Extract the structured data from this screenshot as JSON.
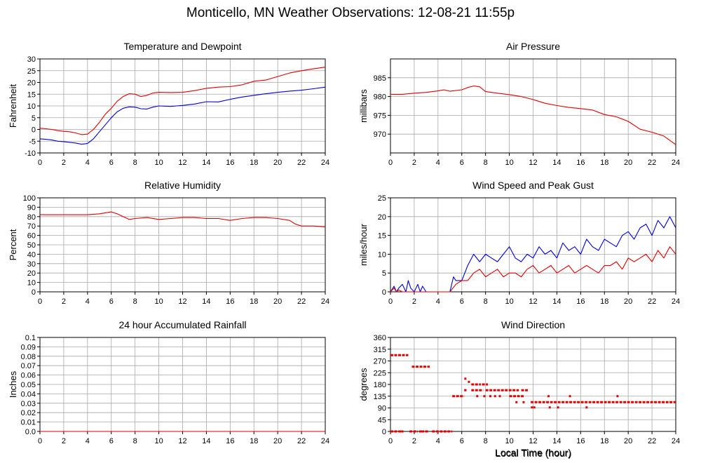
{
  "page": {
    "title": "Monticello, MN Weather Observations: 12-08-21 11:55p"
  },
  "colors": {
    "red": "#e00000",
    "blue": "#0000d8",
    "grid": "#a8a8a8",
    "axis": "#000000"
  },
  "x_axis": {
    "label": "Local Time (hour)",
    "ticks": [
      0,
      2,
      4,
      6,
      8,
      10,
      12,
      14,
      16,
      18,
      20,
      22,
      24
    ],
    "xlim": [
      0,
      24
    ]
  },
  "chart_data": [
    {
      "id": "temp",
      "type": "line",
      "title": "Temperature and Dewpoint",
      "xlabel": "",
      "ylabel": "Fahrenheit",
      "ylim": [
        -10,
        30
      ],
      "xlim": [
        0,
        24
      ],
      "yticks": [
        -10,
        -5,
        0,
        5,
        10,
        15,
        20,
        25,
        30
      ],
      "ytick_labels": [
        "-10",
        "-5",
        "0",
        "5",
        "10",
        "15",
        "20",
        "25",
        "30"
      ],
      "xticks": [
        0,
        2,
        4,
        6,
        8,
        10,
        12,
        14,
        16,
        18,
        20,
        22,
        24
      ],
      "grid": true,
      "series": [
        {
          "color": "#e00000",
          "x": [
            0,
            0.5,
            1,
            1.5,
            2,
            2.5,
            3,
            3.5,
            4,
            4.5,
            5,
            5.5,
            6,
            6.5,
            7,
            7.5,
            8,
            8.5,
            9,
            9.5,
            10,
            11,
            12,
            13,
            14,
            15,
            16,
            17,
            18,
            19,
            20,
            21,
            22,
            23,
            24
          ],
          "y": [
            0.5,
            0.3,
            0,
            -0.5,
            -0.8,
            -1,
            -1.5,
            -2.2,
            -2,
            0,
            3,
            6.5,
            9,
            12,
            14,
            15.2,
            15,
            14,
            14.5,
            15.5,
            15.8,
            15.7,
            15.8,
            16.5,
            17.5,
            18,
            18.2,
            19,
            20.5,
            21,
            22.5,
            24,
            25,
            25.8,
            26.5
          ]
        },
        {
          "color": "#0000d8",
          "x": [
            0,
            0.5,
            1,
            1.5,
            2,
            2.5,
            3,
            3.5,
            4,
            4.5,
            5,
            5.5,
            6,
            6.5,
            7,
            7.5,
            8,
            8.5,
            9,
            9.5,
            10,
            11,
            12,
            13,
            14,
            15,
            16,
            17,
            18,
            19,
            20,
            21,
            22,
            23,
            24
          ],
          "y": [
            -4,
            -4.2,
            -4.5,
            -5,
            -5.2,
            -5.5,
            -5.8,
            -6.3,
            -6,
            -4,
            -1,
            2,
            5,
            7.5,
            9,
            9.6,
            9.5,
            8.8,
            8.7,
            9.5,
            10,
            9.8,
            10.2,
            10.8,
            11.8,
            11.7,
            12.8,
            13.8,
            14.5,
            15.2,
            15.8,
            16.3,
            16.7,
            17.3,
            18
          ]
        }
      ]
    },
    {
      "id": "pressure",
      "type": "line",
      "title": "Air Pressure",
      "xlabel": "",
      "ylabel": "millibars",
      "ylim": [
        965,
        990
      ],
      "xlim": [
        0,
        24
      ],
      "yticks": [
        970,
        975,
        980,
        985
      ],
      "ytick_labels": [
        "970",
        "975",
        "980",
        "985"
      ],
      "xticks": [
        0,
        2,
        4,
        6,
        8,
        10,
        12,
        14,
        16,
        18,
        20,
        22,
        24
      ],
      "grid": true,
      "series": [
        {
          "color": "#e00000",
          "x": [
            0,
            1,
            2,
            3,
            4,
            4.5,
            5,
            6,
            6.5,
            7,
            7.5,
            8,
            9,
            10,
            11,
            12,
            13,
            14,
            15,
            16,
            17,
            18,
            19,
            20,
            21,
            22,
            23,
            24
          ],
          "y": [
            980.6,
            980.6,
            980.9,
            981.1,
            981.5,
            981.8,
            981.4,
            981.8,
            982.4,
            982.8,
            982.6,
            981.3,
            980.9,
            980.5,
            980.0,
            979.2,
            978.2,
            977.6,
            977.1,
            976.8,
            976.4,
            975.2,
            974.6,
            973.4,
            971.3,
            970.5,
            969.5,
            967.2
          ]
        }
      ]
    },
    {
      "id": "humidity",
      "type": "line",
      "title": "Relative Humidity",
      "xlabel": "",
      "ylabel": "Percent",
      "ylim": [
        0,
        100
      ],
      "xlim": [
        0,
        24
      ],
      "yticks": [
        0,
        10,
        20,
        30,
        40,
        50,
        60,
        70,
        80,
        90,
        100
      ],
      "ytick_labels": [
        "0",
        "10",
        "20",
        "30",
        "40",
        "50",
        "60",
        "70",
        "80",
        "90",
        "100"
      ],
      "xticks": [
        0,
        2,
        4,
        6,
        8,
        10,
        12,
        14,
        16,
        18,
        20,
        22,
        24
      ],
      "grid": true,
      "series": [
        {
          "color": "#e00000",
          "x": [
            0,
            1,
            2,
            3,
            4,
            5,
            5.5,
            6,
            6.5,
            7,
            7.5,
            8,
            9,
            10,
            11,
            12,
            13,
            14,
            15,
            16,
            17,
            18,
            19,
            20,
            21,
            21.5,
            22,
            23,
            24
          ],
          "y": [
            82,
            82,
            82,
            82,
            82,
            83,
            84,
            85,
            83,
            80,
            77,
            78,
            79,
            77,
            78,
            79,
            79,
            78,
            78,
            76,
            78,
            79,
            79,
            78,
            76,
            72,
            70,
            70,
            69
          ]
        }
      ]
    },
    {
      "id": "wind_speed",
      "type": "line",
      "title": "Wind Speed and Peak Gust",
      "xlabel": "",
      "ylabel": "miles/hour",
      "ylim": [
        0,
        25
      ],
      "xlim": [
        0,
        24
      ],
      "yticks": [
        0,
        5,
        10,
        15,
        20,
        25
      ],
      "ytick_labels": [
        "0",
        "5",
        "10",
        "15",
        "20",
        "25"
      ],
      "xticks": [
        0,
        2,
        4,
        6,
        8,
        10,
        12,
        14,
        16,
        18,
        20,
        22,
        24
      ],
      "grid": true,
      "series": [
        {
          "color": "#0000d8",
          "x": [
            0,
            0.3,
            0.5,
            0.7,
            1,
            1.3,
            1.5,
            1.7,
            2,
            2.3,
            2.5,
            2.7,
            3,
            3.5,
            4,
            4.5,
            5,
            5.3,
            5.5,
            6,
            6.5,
            7,
            7.5,
            8,
            8.5,
            9,
            9.5,
            10,
            10.5,
            11,
            11.5,
            12,
            12.5,
            13,
            13.5,
            14,
            14.5,
            15,
            15.5,
            16,
            16.5,
            17,
            17.5,
            18,
            18.5,
            19,
            19.5,
            20,
            20.5,
            21,
            21.5,
            22,
            22.5,
            23,
            23.5,
            24
          ],
          "y": [
            0,
            1.5,
            0,
            1,
            2,
            0,
            3,
            1,
            0,
            2,
            0,
            1.5,
            0,
            0,
            0,
            0,
            0,
            4,
            3,
            3,
            7,
            10,
            8,
            10,
            9,
            8,
            10,
            12,
            9,
            8,
            10,
            9,
            12,
            10,
            11,
            9,
            13,
            11,
            12,
            10,
            14,
            12,
            11,
            14,
            13,
            12,
            15,
            16,
            14,
            17,
            18,
            15,
            19,
            17,
            20,
            17
          ]
        },
        {
          "color": "#e00000",
          "x": [
            0,
            0.3,
            0.5,
            0.7,
            1,
            1.5,
            2,
            2.5,
            3,
            3.5,
            4,
            4.5,
            5,
            5.5,
            6,
            6.5,
            7,
            7.5,
            8,
            8.5,
            9,
            9.5,
            10,
            10.5,
            11,
            11.5,
            12,
            12.5,
            13,
            13.5,
            14,
            14.5,
            15,
            15.5,
            16,
            16.5,
            17,
            17.5,
            18,
            18.5,
            19,
            19.5,
            20,
            20.5,
            21,
            21.5,
            22,
            22.5,
            23,
            23.5,
            24
          ],
          "y": [
            0,
            1,
            0,
            0.5,
            0,
            0,
            0,
            0,
            0,
            0,
            0,
            0,
            0,
            2,
            3,
            3,
            5,
            6,
            4,
            5,
            6,
            4,
            5,
            5,
            4,
            6,
            7,
            5,
            6,
            7,
            5,
            6,
            7,
            5,
            6,
            7,
            6,
            5,
            7,
            7,
            8,
            6,
            9,
            8,
            9,
            10,
            8,
            11,
            9,
            12,
            10
          ]
        }
      ]
    },
    {
      "id": "rainfall",
      "type": "line",
      "title": "24 hour Accumulated Rainfall",
      "xlabel": "",
      "ylabel": "Inches",
      "ylim": [
        0,
        0.1
      ],
      "xlim": [
        0,
        24
      ],
      "yticks": [
        0,
        0.01,
        0.02,
        0.03,
        0.04,
        0.05,
        0.06,
        0.07,
        0.08,
        0.09,
        0.1
      ],
      "ytick_labels": [
        "0.0",
        "0.01",
        "0.02",
        "0.03",
        "0.04",
        "0.05",
        "0.06",
        "0.07",
        "0.08",
        "0.09",
        "0.1"
      ],
      "xticks": [
        0,
        2,
        4,
        6,
        8,
        10,
        12,
        14,
        16,
        18,
        20,
        22,
        24
      ],
      "grid": true,
      "series": [
        {
          "color": "#e00000",
          "x": [
            0,
            24
          ],
          "y": [
            0,
            0
          ]
        }
      ]
    },
    {
      "id": "wind_direction",
      "type": "scatter",
      "title": "Wind Direction",
      "xlabel": "Local Time (hour)",
      "ylabel": "degrees",
      "ylim": [
        0,
        360
      ],
      "xlim": [
        0,
        24
      ],
      "yticks": [
        0,
        45,
        90,
        135,
        180,
        225,
        270,
        315,
        360
      ],
      "ytick_labels": [
        "0",
        "45",
        "90",
        "135",
        "180",
        "225",
        "270",
        "315",
        "360"
      ],
      "xticks": [
        0,
        2,
        4,
        6,
        8,
        10,
        12,
        14,
        16,
        18,
        20,
        22,
        24
      ],
      "grid": true,
      "series": [
        {
          "color": "#e00000",
          "segments": [
            [
              0.0,
              1.5,
              292
            ],
            [
              1.8,
              3.3,
              248
            ],
            [
              0.0,
              0.7,
              0
            ],
            [
              1.6,
              2.3,
              0
            ],
            [
              2.6,
              3.2,
              0
            ],
            [
              3.5,
              5.2,
              0
            ],
            [
              5.2,
              6.2,
              135
            ],
            [
              6.2,
              6.4,
              158
            ],
            [
              6.8,
              7.6,
              180
            ],
            [
              6.8,
              7.8,
              158
            ],
            [
              7.7,
              8.2,
              180
            ],
            [
              8.0,
              10.8,
              158
            ],
            [
              10.0,
              11.2,
              135
            ],
            [
              11.0,
              11.6,
              158
            ],
            [
              11.8,
              24.0,
              112
            ]
          ],
          "points": [
            [
              0.8,
              0
            ],
            [
              1.0,
              0
            ],
            [
              2.5,
              0
            ],
            [
              6.3,
              202
            ],
            [
              6.6,
              190
            ],
            [
              7.3,
              135
            ],
            [
              7.9,
              135
            ],
            [
              8.4,
              135
            ],
            [
              8.8,
              135
            ],
            [
              9.2,
              135
            ],
            [
              10.6,
              112
            ],
            [
              11.2,
              112
            ],
            [
              11.9,
              92
            ],
            [
              12.1,
              92
            ],
            [
              13.3,
              135
            ],
            [
              13.4,
              92
            ],
            [
              14.1,
              92
            ],
            [
              15.1,
              135
            ],
            [
              16.5,
              92
            ],
            [
              19.1,
              135
            ]
          ]
        }
      ]
    }
  ]
}
